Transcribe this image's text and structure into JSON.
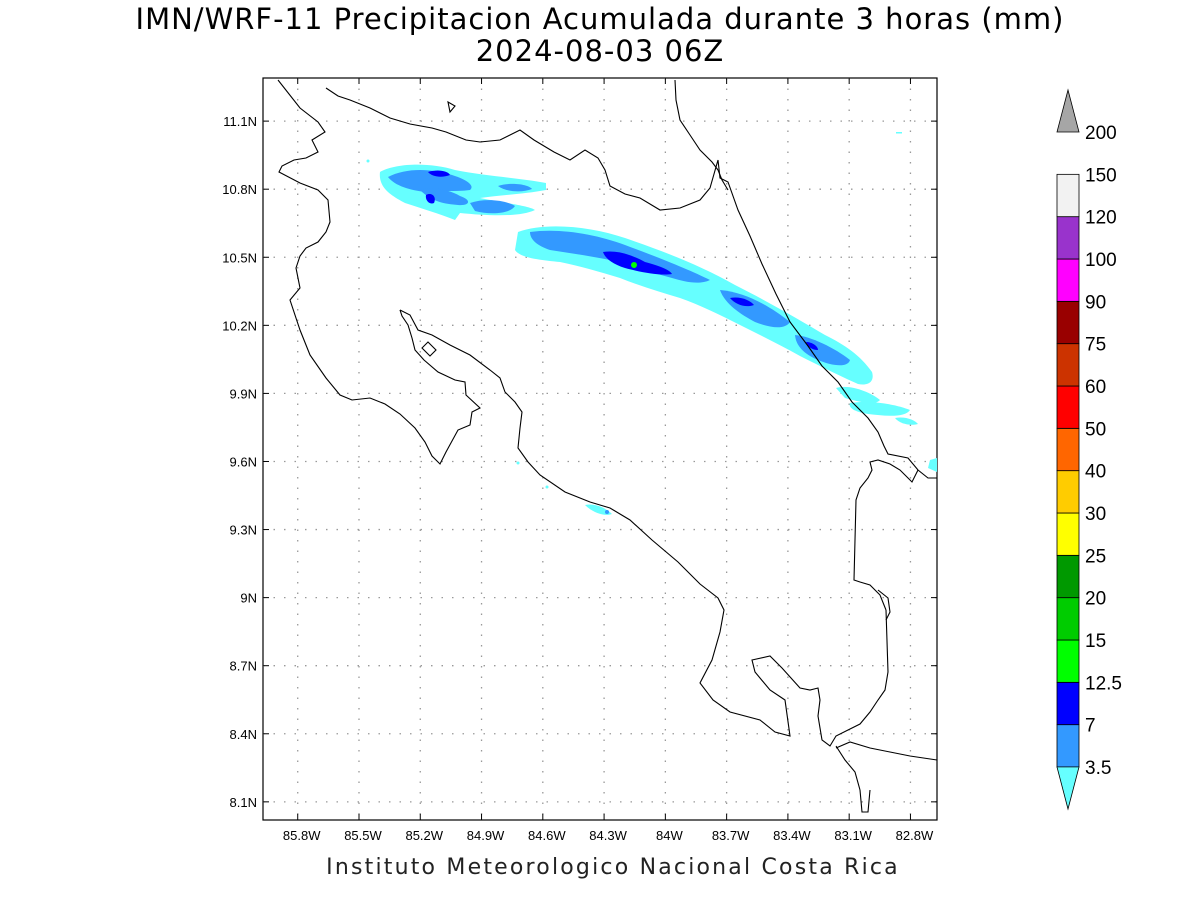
{
  "title": "IMN/WRF-11 Precipitacion Acumulada durante 3 horas (mm)",
  "subtitle": "2024-08-03 06Z",
  "credit": "Instituto Meteorologico Nacional Costa Rica",
  "map": {
    "lon_range": [
      -85.97,
      -82.67
    ],
    "lat_range": [
      8.02,
      11.29
    ],
    "lon_ticks": [
      "85.8W",
      "85.5W",
      "85.2W",
      "84.9W",
      "84.6W",
      "84.3W",
      "84W",
      "83.7W",
      "83.4W",
      "83.1W",
      "82.8W"
    ],
    "lat_ticks": [
      "11.1N",
      "10.8N",
      "10.5N",
      "10.2N",
      "9.9N",
      "9.6N",
      "9.3N",
      "9N",
      "8.7N",
      "8.4N",
      "8.1N"
    ],
    "grid": "dotted"
  },
  "colorbar": {
    "levels": [
      "3.5",
      "7",
      "12.5",
      "15",
      "20",
      "25",
      "30",
      "40",
      "50",
      "60",
      "75",
      "90",
      "100",
      "120",
      "150",
      "200"
    ],
    "colors": [
      "#66ffff",
      "#3399ff",
      "#0000ff",
      "#00ff00",
      "#00cc00",
      "#009900",
      "#ffff00",
      "#ffcc00",
      "#ff6600",
      "#ff0000",
      "#cc3300",
      "#990000",
      "#ff00ff",
      "#9933cc",
      "#f2f2f2",
      "#a6a6a6"
    ]
  }
}
